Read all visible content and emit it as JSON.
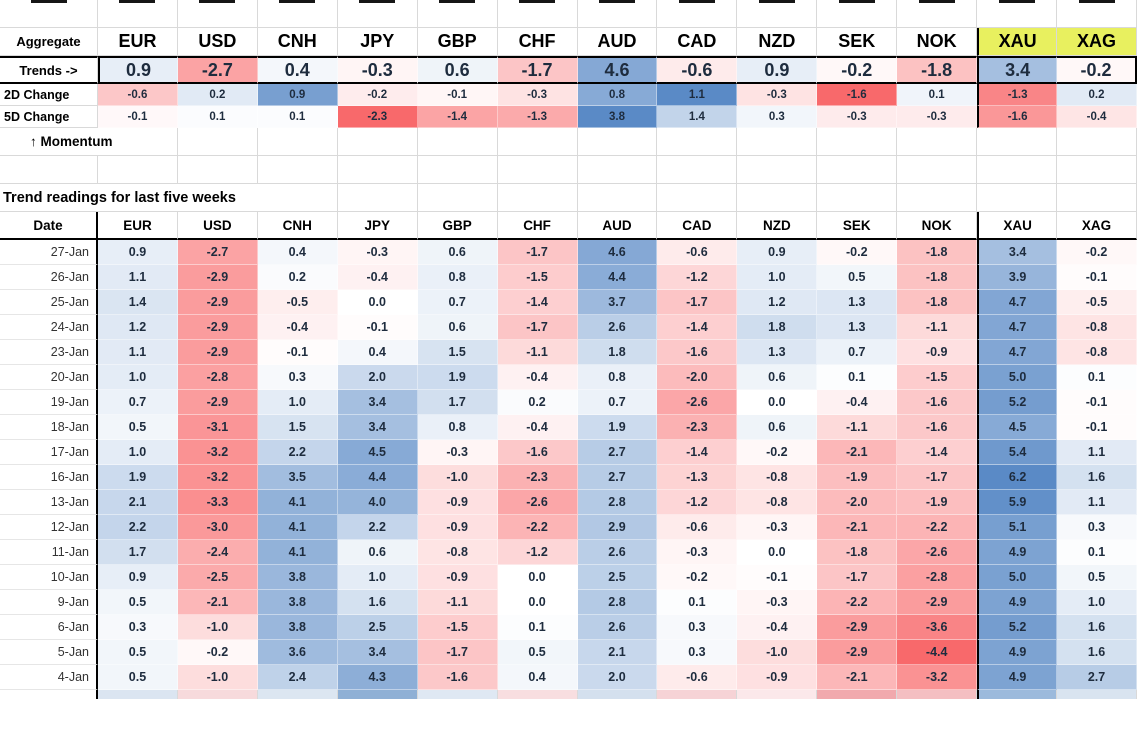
{
  "labels": {
    "aggregate": "Aggregate",
    "trends": "Trends ->",
    "change_2d": "2D Change",
    "change_5d": "5D Change",
    "momentum": "↑ Momentum",
    "date_header": "Date"
  },
  "colors": {
    "header_highlight": "#e8f05f",
    "gridline": "#d9d9d9",
    "thick_border": "#000000"
  },
  "partial_row_colors": [
    "#dbe5f1",
    "#f7dadc",
    "#dce6f1",
    "#8fb0d5",
    "#dfe8f3",
    "#f8dee0",
    "#d4e0ee",
    "#f6d3d6",
    "#fbe8ea",
    "#f1a9ad",
    "#f4bfc2",
    "#9cbadc",
    "#d9e4f0"
  ],
  "chart_data": {
    "type": "heatmap",
    "title": "Trend readings for last five weeks",
    "columns": [
      "EUR",
      "USD",
      "CNH",
      "JPY",
      "GBP",
      "CHF",
      "AUD",
      "CAD",
      "NZD",
      "SEK",
      "NOK",
      "XAU",
      "XAG"
    ],
    "highlighted_columns": [
      "XAU",
      "XAG"
    ],
    "color_scale": {
      "positive": "#5a8ac6",
      "negative": "#f8696b",
      "mid": "#ffffff"
    },
    "aggregate": {
      "trends": [
        0.9,
        -2.7,
        0.4,
        -0.3,
        0.6,
        -1.7,
        4.6,
        -0.6,
        0.9,
        -0.2,
        -1.8,
        3.4,
        -0.2
      ],
      "change_2d": [
        -0.6,
        0.2,
        0.9,
        -0.2,
        -0.1,
        -0.3,
        0.8,
        1.1,
        -0.3,
        -1.6,
        0.1,
        -1.3,
        0.2
      ],
      "change_5d": [
        -0.1,
        0.1,
        0.1,
        -2.3,
        -1.4,
        -1.3,
        3.8,
        1.4,
        0.3,
        -0.3,
        -0.3,
        -1.6,
        -0.4
      ]
    },
    "rows": [
      {
        "date": "27-Jan",
        "values": [
          0.9,
          -2.7,
          0.4,
          -0.3,
          0.6,
          -1.7,
          4.6,
          -0.6,
          0.9,
          -0.2,
          -1.8,
          3.4,
          -0.2
        ]
      },
      {
        "date": "26-Jan",
        "values": [
          1.1,
          -2.9,
          0.2,
          -0.4,
          0.8,
          -1.5,
          4.4,
          -1.2,
          1.0,
          0.5,
          -1.8,
          3.9,
          -0.1
        ]
      },
      {
        "date": "25-Jan",
        "values": [
          1.4,
          -2.9,
          -0.5,
          0.0,
          0.7,
          -1.4,
          3.7,
          -1.7,
          1.2,
          1.3,
          -1.8,
          4.7,
          -0.5
        ]
      },
      {
        "date": "24-Jan",
        "values": [
          1.2,
          -2.9,
          -0.4,
          -0.1,
          0.6,
          -1.7,
          2.6,
          -1.4,
          1.8,
          1.3,
          -1.1,
          4.7,
          -0.8
        ]
      },
      {
        "date": "23-Jan",
        "values": [
          1.1,
          -2.9,
          -0.1,
          0.4,
          1.5,
          -1.1,
          1.8,
          -1.6,
          1.3,
          0.7,
          -0.9,
          4.7,
          -0.8
        ]
      },
      {
        "date": "20-Jan",
        "values": [
          1.0,
          -2.8,
          0.3,
          2.0,
          1.9,
          -0.4,
          0.8,
          -2.0,
          0.6,
          0.1,
          -1.5,
          5.0,
          0.1
        ]
      },
      {
        "date": "19-Jan",
        "values": [
          0.7,
          -2.9,
          1.0,
          3.4,
          1.7,
          0.2,
          0.7,
          -2.6,
          0.0,
          -0.4,
          -1.6,
          5.2,
          -0.1
        ]
      },
      {
        "date": "18-Jan",
        "values": [
          0.5,
          -3.1,
          1.5,
          3.4,
          0.8,
          -0.4,
          1.9,
          -2.3,
          0.6,
          -1.1,
          -1.6,
          4.5,
          -0.1
        ]
      },
      {
        "date": "17-Jan",
        "values": [
          1.0,
          -3.2,
          2.2,
          4.5,
          -0.3,
          -1.6,
          2.7,
          -1.4,
          -0.2,
          -2.1,
          -1.4,
          5.4,
          1.1
        ]
      },
      {
        "date": "16-Jan",
        "values": [
          1.9,
          -3.2,
          3.5,
          4.4,
          -1.0,
          -2.3,
          2.7,
          -1.3,
          -0.8,
          -1.9,
          -1.7,
          6.2,
          1.6
        ]
      },
      {
        "date": "13-Jan",
        "values": [
          2.1,
          -3.3,
          4.1,
          4.0,
          -0.9,
          -2.6,
          2.8,
          -1.2,
          -0.8,
          -2.0,
          -1.9,
          5.9,
          1.1
        ]
      },
      {
        "date": "12-Jan",
        "values": [
          2.2,
          -3.0,
          4.1,
          2.2,
          -0.9,
          -2.2,
          2.9,
          -0.6,
          -0.3,
          -2.1,
          -2.2,
          5.1,
          0.3
        ]
      },
      {
        "date": "11-Jan",
        "values": [
          1.7,
          -2.4,
          4.1,
          0.6,
          -0.8,
          -1.2,
          2.6,
          -0.3,
          0.0,
          -1.8,
          -2.6,
          4.9,
          0.1
        ]
      },
      {
        "date": "10-Jan",
        "values": [
          0.9,
          -2.5,
          3.8,
          1.0,
          -0.9,
          0.0,
          2.5,
          -0.2,
          -0.1,
          -1.7,
          -2.8,
          5.0,
          0.5
        ]
      },
      {
        "date": "9-Jan",
        "values": [
          0.5,
          -2.1,
          3.8,
          1.6,
          -1.1,
          0.0,
          2.8,
          0.1,
          -0.3,
          -2.2,
          -2.9,
          4.9,
          1.0
        ]
      },
      {
        "date": "6-Jan",
        "values": [
          0.3,
          -1.0,
          3.8,
          2.5,
          -1.5,
          0.1,
          2.6,
          0.3,
          -0.4,
          -2.9,
          -3.6,
          5.2,
          1.6
        ]
      },
      {
        "date": "5-Jan",
        "values": [
          0.5,
          -0.2,
          3.6,
          3.4,
          -1.7,
          0.5,
          2.1,
          0.3,
          -1.0,
          -2.9,
          -4.4,
          4.9,
          1.6
        ]
      },
      {
        "date": "4-Jan",
        "values": [
          0.5,
          -1.0,
          2.4,
          4.3,
          -1.6,
          0.4,
          2.0,
          -0.6,
          -0.9,
          -2.1,
          -3.2,
          4.9,
          2.7
        ]
      }
    ]
  }
}
